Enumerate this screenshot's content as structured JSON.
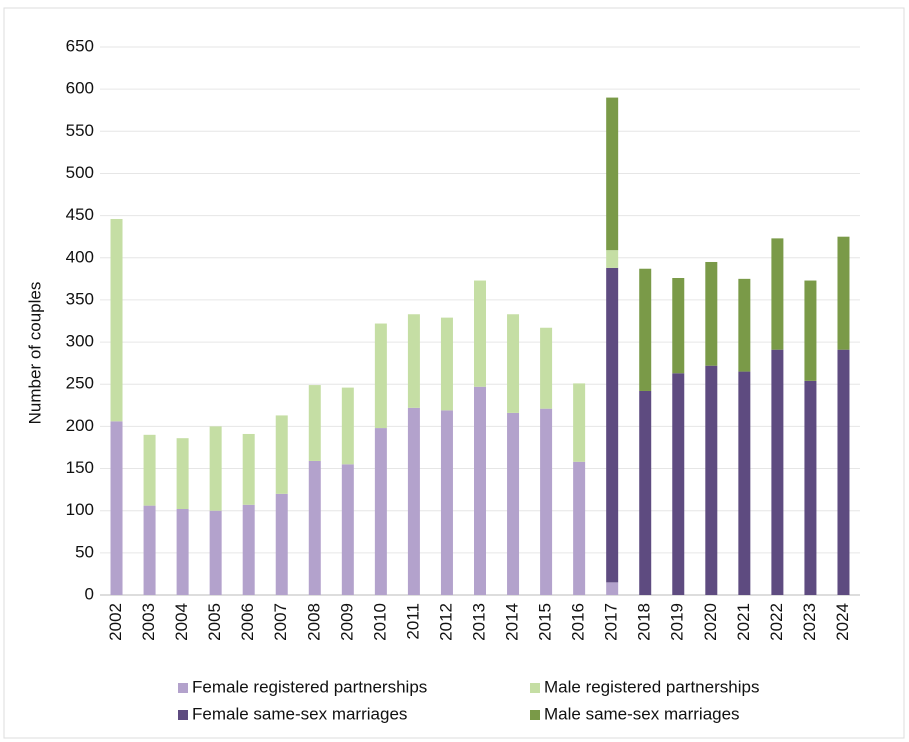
{
  "chart_data": {
    "type": "stacked_bar",
    "y_label": "Number of couples",
    "categories": [
      "2002",
      "2003",
      "2004",
      "2005",
      "2006",
      "2007",
      "2008",
      "2009",
      "2010",
      "2011",
      "2012",
      "2013",
      "2014",
      "2015",
      "2016",
      "2017",
      "2018",
      "2019",
      "2020",
      "2021",
      "2022",
      "2023",
      "2024"
    ],
    "series": [
      {
        "name": "Female registered partnerships",
        "color": "#b3a2cc",
        "values": [
          206,
          106,
          102,
          100,
          107,
          120,
          159,
          155,
          198,
          222,
          219,
          247,
          216,
          221,
          158,
          15,
          0,
          0,
          0,
          0,
          0,
          0,
          0
        ]
      },
      {
        "name": "Female same-sex marriages",
        "color": "#5e4b80",
        "values": [
          0,
          0,
          0,
          0,
          0,
          0,
          0,
          0,
          0,
          0,
          0,
          0,
          0,
          0,
          0,
          373,
          242,
          263,
          272,
          265,
          291,
          254,
          291
        ]
      },
      {
        "name": "Male registered partnerships",
        "color": "#c5dea4",
        "values": [
          240,
          84,
          84,
          100,
          84,
          93,
          90,
          91,
          124,
          111,
          110,
          126,
          117,
          96,
          93,
          21,
          0,
          0,
          0,
          0,
          0,
          0,
          0
        ]
      },
      {
        "name": "Male same-sex marriages",
        "color": "#7a9a48",
        "values": [
          0,
          0,
          0,
          0,
          0,
          0,
          0,
          0,
          0,
          0,
          0,
          0,
          0,
          0,
          0,
          181,
          145,
          113,
          123,
          110,
          132,
          119,
          134
        ]
      }
    ],
    "ylim": [
      0,
      650
    ],
    "yticks": [
      0,
      50,
      100,
      150,
      200,
      250,
      300,
      350,
      400,
      450,
      500,
      550,
      600,
      650
    ],
    "grid": true
  }
}
